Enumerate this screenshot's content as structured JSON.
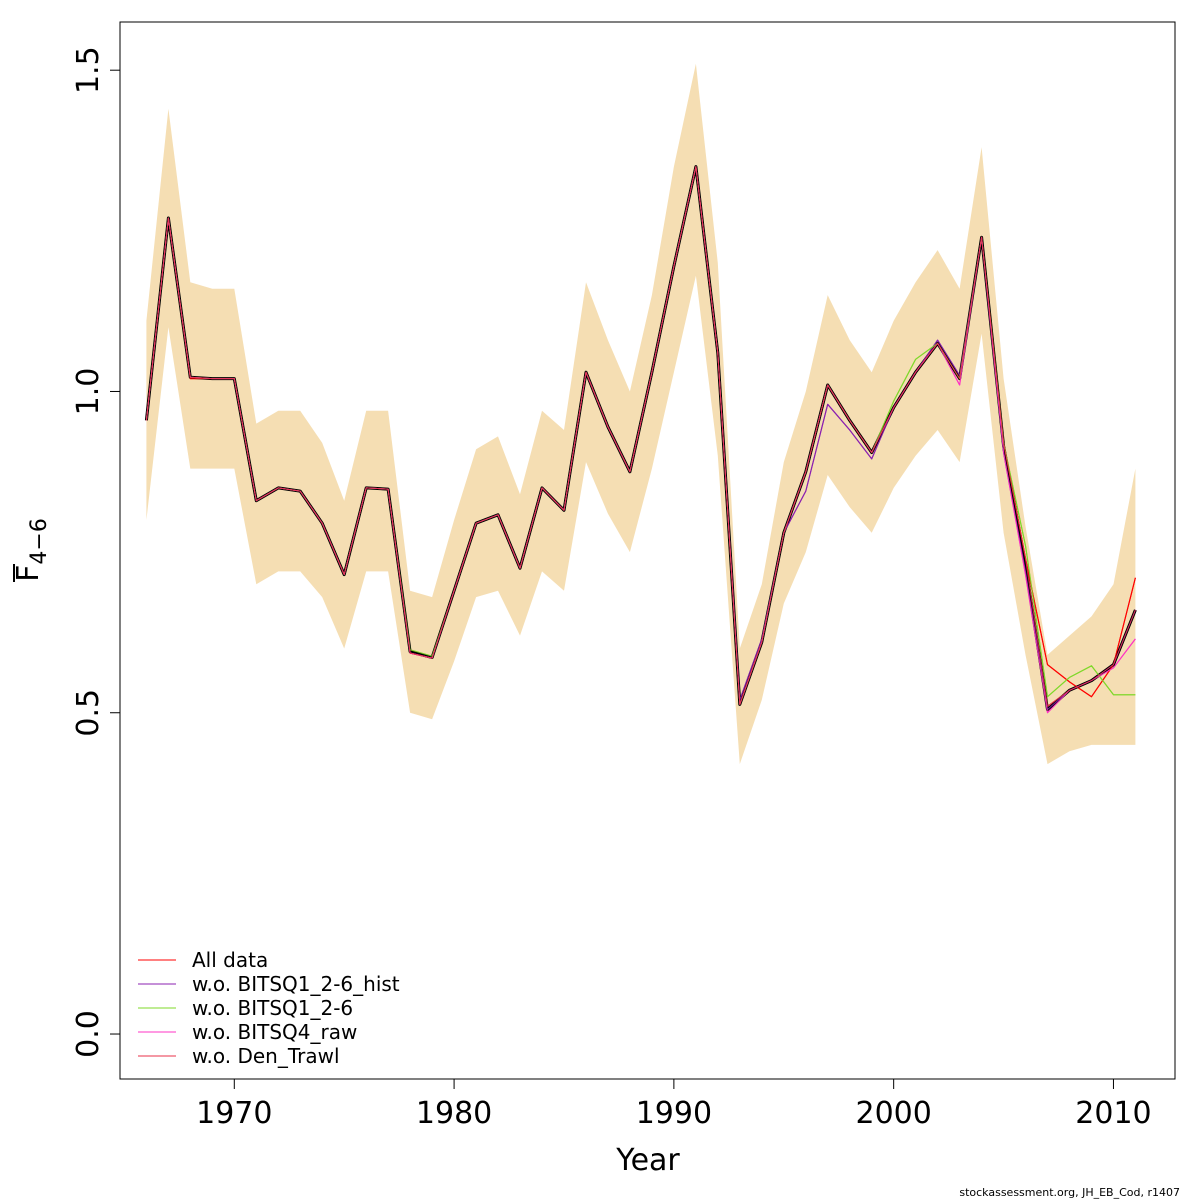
{
  "chart_data": {
    "type": "line",
    "xlabel": "Year",
    "ylabel_main": "F",
    "ylabel_sub": "4−6",
    "xlim": [
      1964.8,
      2012.8
    ],
    "ylim": [
      -0.07,
      1.575
    ],
    "xticks": [
      1970,
      1980,
      1990,
      2000,
      2010
    ],
    "xtick_labels": [
      "1970",
      "1980",
      "1990",
      "2000",
      "2010"
    ],
    "yticks": [
      0.0,
      0.5,
      1.0,
      1.5
    ],
    "ytick_labels": [
      "0.0",
      "0.5",
      "1.0",
      "1.5"
    ],
    "band": {
      "color": "#f5deb3",
      "x": [
        1966,
        1967,
        1968,
        1969,
        1970,
        1971,
        1972,
        1973,
        1974,
        1975,
        1976,
        1977,
        1978,
        1979,
        1980,
        1981,
        1982,
        1983,
        1984,
        1985,
        1986,
        1987,
        1988,
        1989,
        1990,
        1991,
        1992,
        1993,
        1994,
        1995,
        1996,
        1997,
        1998,
        1999,
        2000,
        2001,
        2002,
        2003,
        2004,
        2005,
        2006,
        2007,
        2008,
        2009,
        2010,
        2011
      ],
      "lower": [
        0.8,
        1.1,
        0.88,
        0.88,
        0.88,
        0.7,
        0.72,
        0.72,
        0.68,
        0.6,
        0.72,
        0.72,
        0.5,
        0.49,
        0.58,
        0.68,
        0.69,
        0.62,
        0.72,
        0.69,
        0.89,
        0.81,
        0.75,
        0.88,
        1.03,
        1.18,
        0.9,
        0.42,
        0.52,
        0.67,
        0.75,
        0.87,
        0.82,
        0.78,
        0.85,
        0.9,
        0.94,
        0.89,
        1.09,
        0.78,
        0.59,
        0.42,
        0.44,
        0.45,
        0.45,
        0.45
      ],
      "upper": [
        1.11,
        1.44,
        1.17,
        1.16,
        1.16,
        0.95,
        0.97,
        0.97,
        0.92,
        0.83,
        0.97,
        0.97,
        0.69,
        0.68,
        0.8,
        0.91,
        0.93,
        0.84,
        0.97,
        0.94,
        1.17,
        1.08,
        1.0,
        1.15,
        1.35,
        1.51,
        1.2,
        0.6,
        0.7,
        0.89,
        1.0,
        1.15,
        1.08,
        1.03,
        1.11,
        1.17,
        1.22,
        1.16,
        1.38,
        1.02,
        0.79,
        0.59,
        0.62,
        0.65,
        0.7,
        0.88
      ]
    },
    "x": [
      1966,
      1967,
      1968,
      1969,
      1970,
      1971,
      1972,
      1973,
      1974,
      1975,
      1976,
      1977,
      1978,
      1979,
      1980,
      1981,
      1982,
      1983,
      1984,
      1985,
      1986,
      1987,
      1988,
      1989,
      1990,
      1991,
      1992,
      1993,
      1994,
      1995,
      1996,
      1997,
      1998,
      1999,
      2000,
      2001,
      2002,
      2003,
      2004,
      2005,
      2006,
      2007,
      2008,
      2009,
      2010,
      2011
    ],
    "series": [
      {
        "name": "All data",
        "color": "#ff0000",
        "width": 1.2,
        "values": [
          0.955,
          1.27,
          1.02,
          1.02,
          1.02,
          0.83,
          0.85,
          0.845,
          0.795,
          0.715,
          0.85,
          0.848,
          0.593,
          0.585,
          0.69,
          0.795,
          0.808,
          0.725,
          0.85,
          0.815,
          1.03,
          0.945,
          0.875,
          1.03,
          1.195,
          1.35,
          1.06,
          0.513,
          0.61,
          0.78,
          0.875,
          1.01,
          0.955,
          0.905,
          0.975,
          1.03,
          1.075,
          1.02,
          1.24,
          0.92,
          0.74,
          0.575,
          0.548,
          0.525,
          0.575,
          0.71
        ]
      },
      {
        "name": "w.o. BITSQ1_2-6_hist",
        "color": "#8b20b0",
        "width": 1.2,
        "values": [
          0.955,
          1.27,
          1.022,
          1.02,
          1.02,
          0.83,
          0.85,
          0.845,
          0.795,
          0.715,
          0.85,
          0.848,
          0.593,
          0.585,
          0.69,
          0.795,
          0.808,
          0.725,
          0.85,
          0.815,
          1.03,
          0.945,
          0.875,
          1.03,
          1.195,
          1.35,
          1.06,
          0.52,
          0.615,
          0.78,
          0.845,
          0.98,
          0.94,
          0.895,
          0.975,
          1.03,
          1.08,
          1.025,
          1.24,
          0.905,
          0.72,
          0.505,
          0.535,
          0.55,
          0.575,
          0.66
        ]
      },
      {
        "name": "w.o. BITSQ1_2-6",
        "color": "#7fd82a",
        "width": 1.2,
        "values": [
          0.955,
          1.27,
          1.022,
          1.02,
          1.02,
          0.83,
          0.85,
          0.845,
          0.795,
          0.715,
          0.85,
          0.848,
          0.598,
          0.588,
          0.69,
          0.795,
          0.808,
          0.725,
          0.85,
          0.815,
          1.03,
          0.945,
          0.875,
          1.03,
          1.195,
          1.35,
          1.06,
          0.513,
          0.61,
          0.78,
          0.875,
          1.01,
          0.955,
          0.905,
          0.985,
          1.05,
          1.075,
          1.02,
          1.24,
          0.92,
          0.76,
          0.525,
          0.555,
          0.573,
          0.528,
          0.528
        ]
      },
      {
        "name": "w.o. BITSQ4_raw",
        "color": "#ff33c4",
        "width": 1.2,
        "values": [
          0.955,
          1.27,
          1.022,
          1.02,
          1.02,
          0.83,
          0.85,
          0.845,
          0.795,
          0.715,
          0.85,
          0.848,
          0.593,
          0.585,
          0.69,
          0.795,
          0.808,
          0.725,
          0.85,
          0.815,
          1.03,
          0.945,
          0.875,
          1.03,
          1.195,
          1.35,
          1.06,
          0.513,
          0.61,
          0.78,
          0.875,
          1.01,
          0.955,
          0.905,
          0.975,
          1.03,
          1.075,
          1.01,
          1.24,
          0.905,
          0.715,
          0.5,
          0.535,
          0.55,
          0.57,
          0.615
        ]
      },
      {
        "name": "w.o. Den_Trawl",
        "color": "#e8304a",
        "width": 1.2,
        "values": [
          0.955,
          1.27,
          1.022,
          1.02,
          1.02,
          0.83,
          0.85,
          0.845,
          0.795,
          0.715,
          0.85,
          0.848,
          0.593,
          0.585,
          0.69,
          0.795,
          0.808,
          0.725,
          0.85,
          0.815,
          1.03,
          0.945,
          0.875,
          1.03,
          1.195,
          1.35,
          1.06,
          0.513,
          0.61,
          0.78,
          0.875,
          1.01,
          0.955,
          0.905,
          0.975,
          1.03,
          1.075,
          1.02,
          1.24,
          0.92,
          0.74,
          0.51,
          0.535,
          0.55,
          0.575,
          0.66
        ]
      }
    ],
    "main_line": {
      "color": "#000000",
      "width": 3,
      "values": [
        0.955,
        1.27,
        1.022,
        1.02,
        1.02,
        0.83,
        0.85,
        0.845,
        0.795,
        0.715,
        0.85,
        0.848,
        0.595,
        0.586,
        0.69,
        0.795,
        0.808,
        0.725,
        0.85,
        0.815,
        1.03,
        0.945,
        0.875,
        1.03,
        1.195,
        1.35,
        1.06,
        0.513,
        0.61,
        0.78,
        0.875,
        1.01,
        0.955,
        0.905,
        0.975,
        1.03,
        1.075,
        1.02,
        1.24,
        0.915,
        0.73,
        0.505,
        0.535,
        0.55,
        0.575,
        0.66
      ]
    },
    "legend_position": "bottom-left",
    "grid": false
  },
  "footer": {
    "note": "stockassessment.org, JH_EB_Cod, r1407"
  }
}
